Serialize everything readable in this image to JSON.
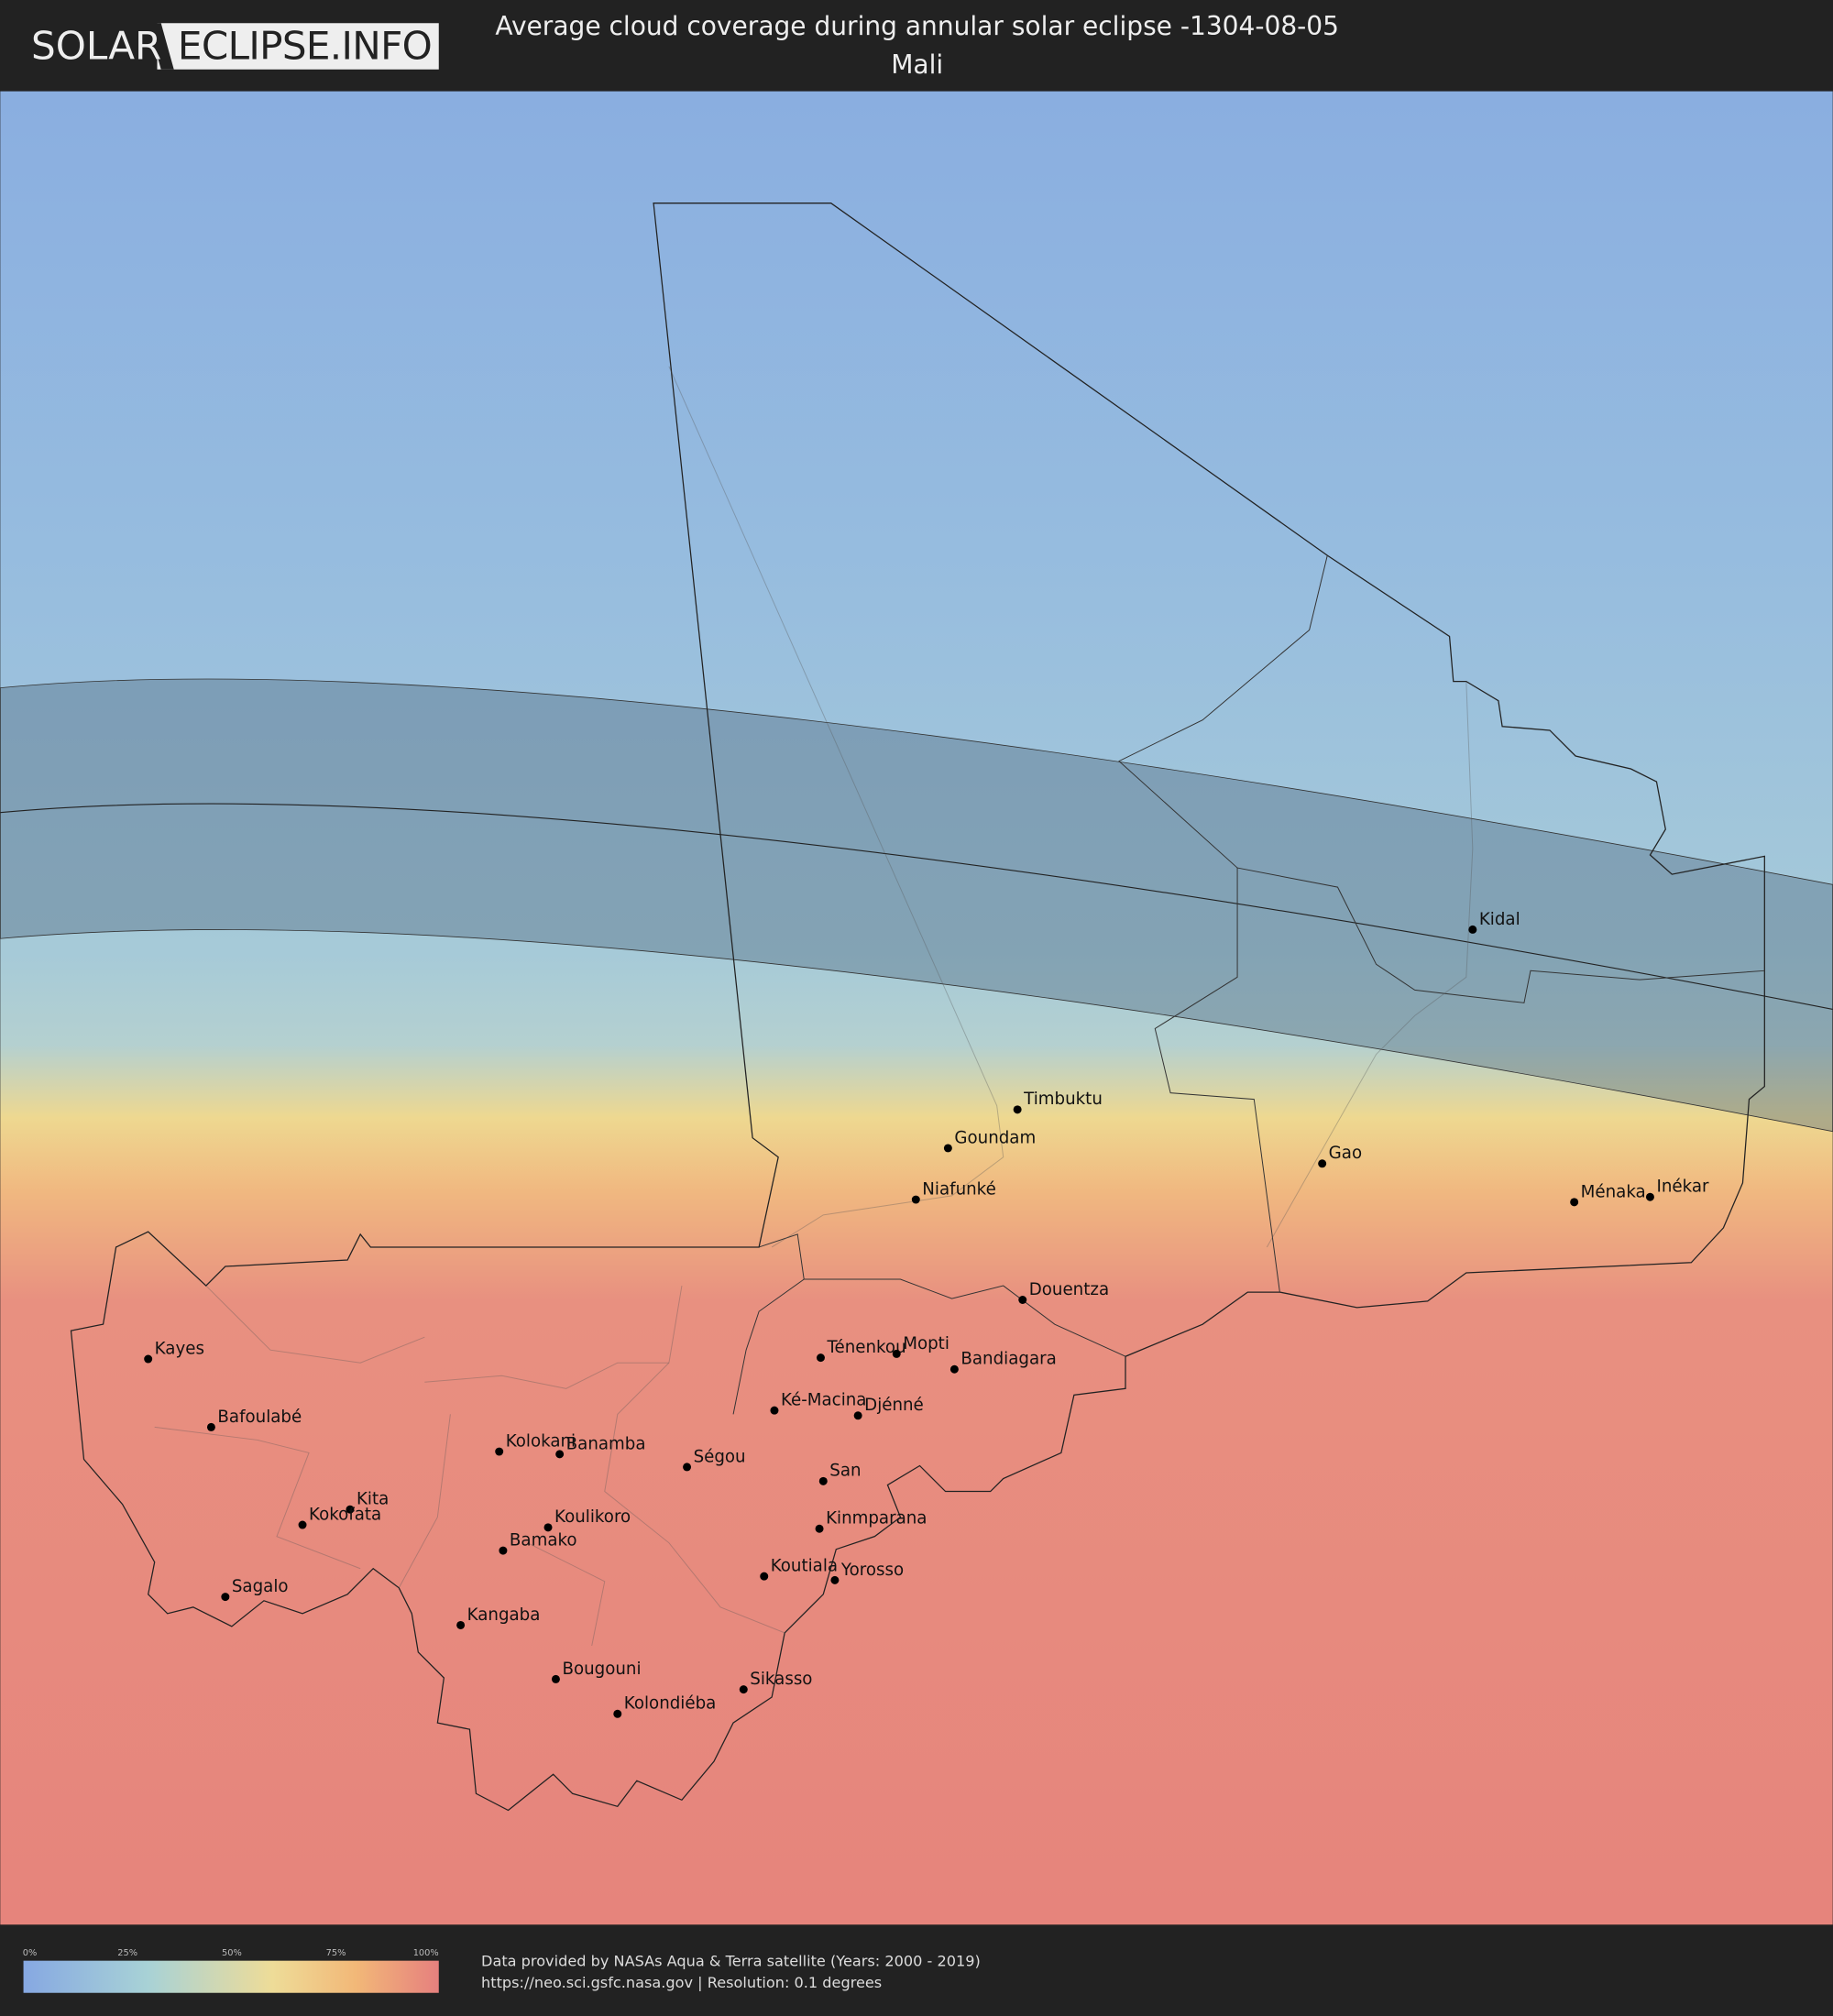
{
  "header": {
    "logo_left": "SOLAR",
    "logo_right": "ECLIPSE.INFO",
    "title": "Average cloud coverage during annular solar eclipse -1304-08-05",
    "subtitle": "Mali"
  },
  "map": {
    "country": "Mali",
    "colors": {
      "low": "#8aaee0",
      "mid": "#eed890",
      "high": "#e6807c",
      "eclipse_band": "#506a80"
    },
    "cities": [
      "Timbuktu",
      "Goundam",
      "Niafunké",
      "Gao",
      "Ménaka",
      "Inékar",
      "Kidal",
      "Douentza",
      "Ténenkou",
      "Mopti",
      "Bandiagara",
      "Ké-Macina",
      "Djénné",
      "Kayes",
      "Bafoulabé",
      "Kolokani",
      "Banamba",
      "Ségou",
      "San",
      "Kita",
      "Kokofata",
      "Koulikoro",
      "Kinmparana",
      "Bamako",
      "Koutiala",
      "Yorosso",
      "Sagalo",
      "Kangaba",
      "Bougouni",
      "Sikasso",
      "Kolondiéba"
    ]
  },
  "legend": {
    "ticks": [
      "0%",
      "25%",
      "50%",
      "75%",
      "100%"
    ],
    "colors": [
      "#86a8e2",
      "#a8d2d6",
      "#eedc98",
      "#f2b878",
      "#e6807e"
    ]
  },
  "footer": {
    "line1": "Data provided by NASAs Aqua & Terra satellite (Years: 2000 - 2019)",
    "line2": "https://neo.sci.gsfc.nasa.gov | Resolution: 0.1 degrees"
  }
}
